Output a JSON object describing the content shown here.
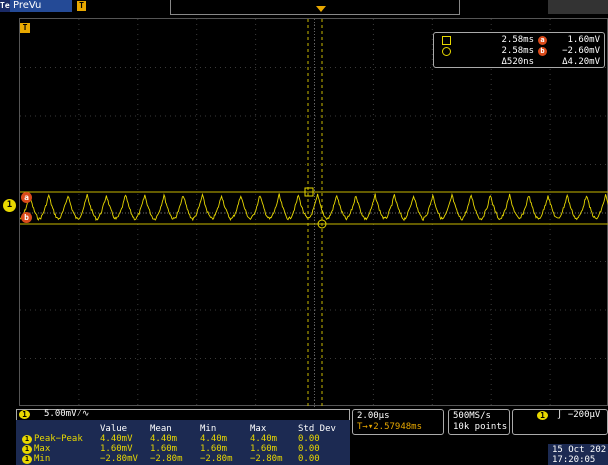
{
  "top": {
    "logo": "Tek",
    "mode": "PreVu",
    "trigger_pos_marker": "T",
    "trigger_level_marker": "T"
  },
  "markers": {
    "channel": "1",
    "cursor_a": "a",
    "cursor_b": "b"
  },
  "cursor_readout": {
    "t1": "2.58ms",
    "a_label": "a",
    "v1": "1.60mV",
    "t2": "2.58ms",
    "b_label": "b",
    "v2": "−2.60mV",
    "dt": "Δ520ns",
    "dv": "Δ4.20mV"
  },
  "channel": {
    "badge": "1",
    "scale": "5.00mV⁄∿"
  },
  "measurements": {
    "headers": [
      "Value",
      "Mean",
      "Min",
      "Max",
      "Std Dev"
    ],
    "rows": [
      {
        "badge": "1",
        "name": "Peak−Peak",
        "values": [
          "4.40mV",
          "4.40m",
          "4.40m",
          "4.40m",
          "0.00"
        ]
      },
      {
        "badge": "1",
        "name": "Max",
        "values": [
          "1.60mV",
          "1.60m",
          "1.60m",
          "1.60m",
          "0.00"
        ]
      },
      {
        "badge": "1",
        "name": "Min",
        "values": [
          "−2.80mV",
          "−2.80m",
          "−2.80m",
          "−2.80m",
          "0.00"
        ]
      }
    ]
  },
  "timebase": {
    "scale": "2.00μs",
    "position": "T→▾2.57948ms"
  },
  "acquisition": {
    "rate": "500MS/s",
    "points": "10k points"
  },
  "trigger": {
    "badge": "1",
    "text": "∫ −200μV"
  },
  "datetime": {
    "date": "15 Oct 202",
    "time": "17:20:05"
  },
  "colors": {
    "channel1": "#e8d800",
    "cursor": "#d94a1a",
    "trigger": "#e8a800",
    "panel": "#1c2a52"
  }
}
